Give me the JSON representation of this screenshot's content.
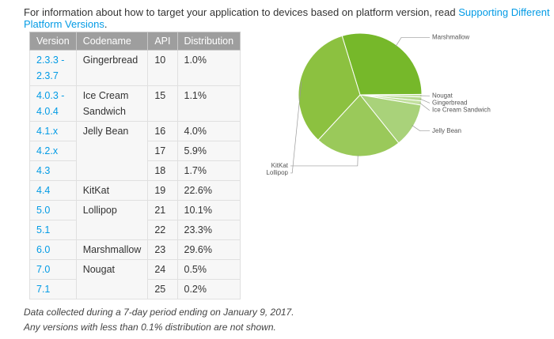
{
  "intro": {
    "text": "For information about how to target your application to devices based on platform version, read ",
    "link": "Supporting Different Platform Versions",
    "suffix": "."
  },
  "table": {
    "header": [
      "Version",
      "Codename",
      "API",
      "Distribution"
    ],
    "groups": [
      {
        "codename": "Gingerbread",
        "versions": [
          {
            "version": "2.3.3 - 2.3.7",
            "api": 10,
            "distribution": "1.0%"
          }
        ]
      },
      {
        "codename": "Ice Cream Sandwich",
        "versions": [
          {
            "version": "4.0.3 - 4.0.4",
            "api": 15,
            "distribution": "1.1%"
          }
        ]
      },
      {
        "codename": "Jelly Bean",
        "versions": [
          {
            "version": "4.1.x",
            "api": 16,
            "distribution": "4.0%"
          },
          {
            "version": "4.2.x",
            "api": 17,
            "distribution": "5.9%"
          },
          {
            "version": "4.3",
            "api": 18,
            "distribution": "1.7%"
          }
        ]
      },
      {
        "codename": "KitKat",
        "versions": [
          {
            "version": "4.4",
            "api": 19,
            "distribution": "22.6%"
          }
        ]
      },
      {
        "codename": "Lollipop",
        "versions": [
          {
            "version": "5.0",
            "api": 21,
            "distribution": "10.1%"
          },
          {
            "version": "5.1",
            "api": 22,
            "distribution": "23.3%"
          }
        ]
      },
      {
        "codename": "Marshmallow",
        "versions": [
          {
            "version": "6.0",
            "api": 23,
            "distribution": "29.6%"
          }
        ]
      },
      {
        "codename": "Nougat",
        "versions": [
          {
            "version": "7.0",
            "api": 24,
            "distribution": "0.5%"
          },
          {
            "version": "7.1",
            "api": 25,
            "distribution": "0.2%"
          }
        ]
      }
    ]
  },
  "notes": [
    "Data collected during a 7-day period ending on January 9, 2017.",
    "Any versions with less than 0.1% distribution are not shown."
  ],
  "chart_data": {
    "type": "pie",
    "categories": [
      "Marshmallow",
      "Nougat",
      "Gingerbread",
      "Ice Cream Sandwich",
      "Jelly Bean",
      "KitKat",
      "Lollipop"
    ],
    "values": [
      29.6,
      0.7,
      1.0,
      1.1,
      11.6,
      22.6,
      33.4
    ],
    "colors": [
      "#76b82a",
      "#c5e1a5",
      "#b7d98f",
      "#c2e09e",
      "#a9d27a",
      "#9ac95a",
      "#8cc140"
    ]
  }
}
